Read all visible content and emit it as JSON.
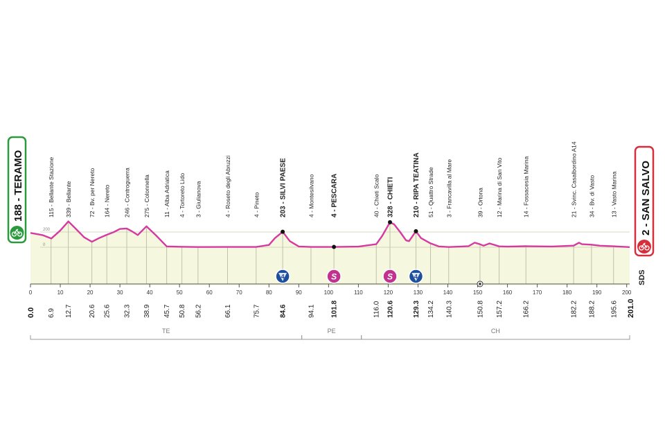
{
  "start": {
    "altitude_name": "188 - TERAMO",
    "km": "0.0",
    "color": "#2a9a3c"
  },
  "finish": {
    "altitude_name": "2 - SAN SALVO",
    "km": "201.0",
    "color": "#d62f3c"
  },
  "brand": "SDS",
  "chart_data": {
    "type": "area",
    "x_range": [
      0,
      201
    ],
    "x_ticks": [
      0,
      10,
      20,
      30,
      40,
      50,
      60,
      70,
      80,
      90,
      100,
      110,
      120,
      130,
      140,
      150,
      160,
      170,
      180,
      190,
      200
    ],
    "y_ticks": [
      0,
      200
    ],
    "y_range": [
      -300,
      1000
    ],
    "profile": [
      [
        0,
        188
      ],
      [
        4,
        160
      ],
      [
        7,
        115
      ],
      [
        10,
        220
      ],
      [
        12.7,
        339
      ],
      [
        15,
        250
      ],
      [
        18,
        130
      ],
      [
        20.6,
        72
      ],
      [
        23,
        120
      ],
      [
        25.6,
        164
      ],
      [
        28,
        200
      ],
      [
        30,
        240
      ],
      [
        32.3,
        246
      ],
      [
        34,
        210
      ],
      [
        36,
        160
      ],
      [
        38.9,
        275
      ],
      [
        42,
        160
      ],
      [
        45.7,
        11
      ],
      [
        50,
        6
      ],
      [
        56.2,
        3
      ],
      [
        66.1,
        4
      ],
      [
        75.7,
        4
      ],
      [
        80,
        30
      ],
      [
        82,
        120
      ],
      [
        84.6,
        203
      ],
      [
        87,
        80
      ],
      [
        90,
        10
      ],
      [
        94.1,
        4
      ],
      [
        101.8,
        4
      ],
      [
        110,
        8
      ],
      [
        116,
        40
      ],
      [
        118,
        150
      ],
      [
        120.6,
        328
      ],
      [
        122,
        300
      ],
      [
        124,
        200
      ],
      [
        126,
        90
      ],
      [
        127,
        80
      ],
      [
        129.3,
        210
      ],
      [
        131,
        120
      ],
      [
        134.2,
        51
      ],
      [
        137,
        10
      ],
      [
        140.3,
        3
      ],
      [
        144,
        8
      ],
      [
        147,
        15
      ],
      [
        149,
        60
      ],
      [
        150.8,
        39
      ],
      [
        152,
        20
      ],
      [
        154,
        50
      ],
      [
        157.2,
        12
      ],
      [
        160,
        8
      ],
      [
        166.2,
        14
      ],
      [
        175,
        10
      ],
      [
        182.2,
        21
      ],
      [
        184,
        60
      ],
      [
        185,
        40
      ],
      [
        188.2,
        34
      ],
      [
        191,
        20
      ],
      [
        195.6,
        13
      ],
      [
        201,
        2
      ]
    ],
    "km_labels": [
      {
        "km": 6.9,
        "text": "6.9"
      },
      {
        "km": 12.7,
        "text": "12.7"
      },
      {
        "km": 20.6,
        "text": "20.6"
      },
      {
        "km": 25.6,
        "text": "25.6"
      },
      {
        "km": 32.3,
        "text": "32.3"
      },
      {
        "km": 38.9,
        "text": "38.9"
      },
      {
        "km": 45.7,
        "text": "45.7"
      },
      {
        "km": 50.8,
        "text": "50.8"
      },
      {
        "km": 56.2,
        "text": "56.2"
      },
      {
        "km": 66.1,
        "text": "66.1"
      },
      {
        "km": 75.7,
        "text": "75.7"
      },
      {
        "km": 84.6,
        "text": "84.6",
        "bold": true
      },
      {
        "km": 94.1,
        "text": "94.1"
      },
      {
        "km": 101.8,
        "text": "101.8",
        "bold": true
      },
      {
        "km": 116.0,
        "text": "116.0"
      },
      {
        "km": 120.6,
        "text": "120.6",
        "bold": true
      },
      {
        "km": 129.3,
        "text": "129.3",
        "bold": true
      },
      {
        "km": 134.2,
        "text": "134.2"
      },
      {
        "km": 140.3,
        "text": "140.3"
      },
      {
        "km": 150.8,
        "text": "150.8"
      },
      {
        "km": 157.2,
        "text": "157.2"
      },
      {
        "km": 166.2,
        "text": "166.2"
      },
      {
        "km": 182.2,
        "text": "182.2"
      },
      {
        "km": 188.2,
        "text": "188.2"
      },
      {
        "km": 195.6,
        "text": "195.6"
      }
    ],
    "places": [
      {
        "km": 6.9,
        "text": "115 - Bellante Stazione"
      },
      {
        "km": 12.7,
        "text": "339 - Bellante"
      },
      {
        "km": 20.6,
        "text": "72 - Bv. per Nereto"
      },
      {
        "km": 25.6,
        "text": "164 - Nereto"
      },
      {
        "km": 32.3,
        "text": "246 - Controguerra"
      },
      {
        "km": 38.9,
        "text": "275 - Colonnella"
      },
      {
        "km": 45.7,
        "text": "11 - Alba Adriatica"
      },
      {
        "km": 50.8,
        "text": "4 - Tortoreto Lido"
      },
      {
        "km": 56.2,
        "text": "3 - Giulianova"
      },
      {
        "km": 66.1,
        "text": "4 - Roseto degli Abruzzi"
      },
      {
        "km": 75.7,
        "text": "4 - Pineto"
      },
      {
        "km": 84.6,
        "text": "203 - SILVI PAESE",
        "bold": true,
        "marker": "dot",
        "climb": "4"
      },
      {
        "km": 94.1,
        "text": "4 - Montesilvano"
      },
      {
        "km": 101.8,
        "text": "4 - PESCARA",
        "bold": true,
        "marker": "dot",
        "sprint": "S"
      },
      {
        "km": 116.0,
        "text": "40 - Chieti Scalo"
      },
      {
        "km": 120.6,
        "text": "328 - CHIETI",
        "bold": true,
        "marker": "dot",
        "sprint": "S"
      },
      {
        "km": 129.3,
        "text": "210 - RIPA TEATINA",
        "bold": true,
        "marker": "dot",
        "climb": "4"
      },
      {
        "km": 134.2,
        "text": "51 - Quattro Strade"
      },
      {
        "km": 140.3,
        "text": "3 - Francavilla al Mare"
      },
      {
        "km": 150.8,
        "text": "39 - Ortona",
        "special": true
      },
      {
        "km": 157.2,
        "text": "12 - Marina di San Vito"
      },
      {
        "km": 166.2,
        "text": "14 - Fossacesia Marina"
      },
      {
        "km": 182.2,
        "text": "21 - Svinc. Casalbordino A14"
      },
      {
        "km": 188.2,
        "text": "34 - Bv. di Vasto"
      },
      {
        "km": 195.6,
        "text": "13 - Vasto Marina"
      }
    ],
    "regions": [
      {
        "from": 0,
        "to": 91,
        "label": "TE"
      },
      {
        "from": 91,
        "to": 111,
        "label": "PE"
      },
      {
        "from": 111,
        "to": 201,
        "label": "CH"
      }
    ],
    "climb_color": "#1e4f9c",
    "sprint_color": "#c1328e",
    "profile_color": "#d63aa0",
    "fill_color": "#f5f7df"
  }
}
